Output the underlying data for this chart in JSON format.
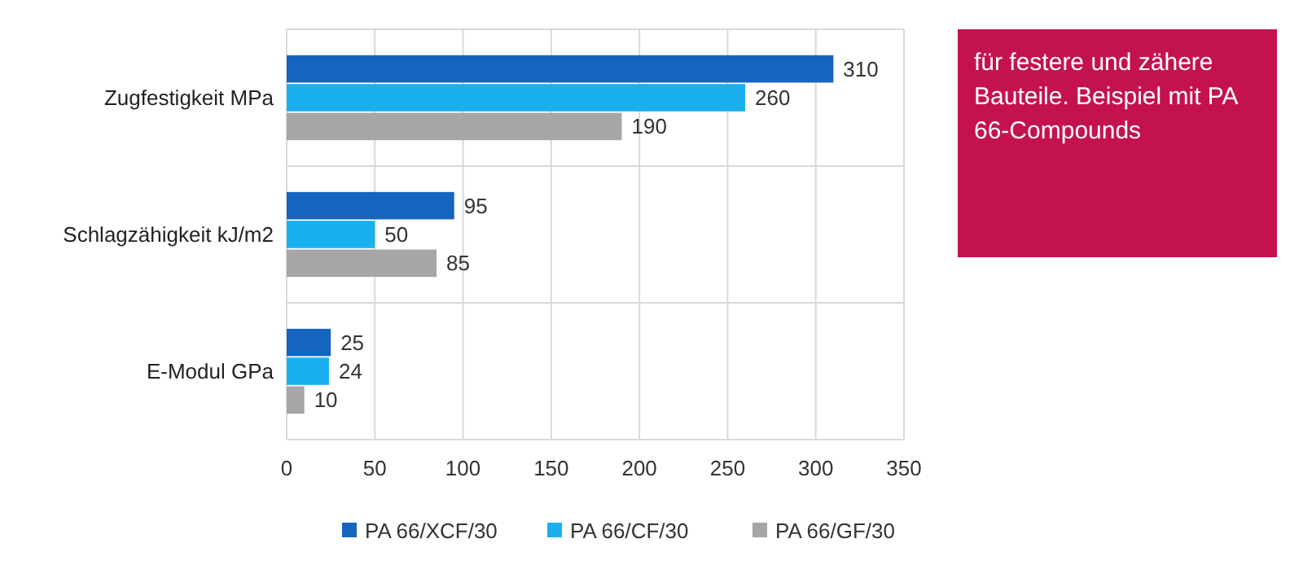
{
  "chart_data": {
    "type": "bar",
    "orientation": "horizontal",
    "categories": [
      "Zugfestigkeit MPa",
      "Schlagzähigkeit kJ/m2",
      "E-Modul GPa"
    ],
    "series": [
      {
        "name": "PA 66/XCF/30",
        "color": "#1565c0",
        "values": [
          310,
          95,
          25
        ]
      },
      {
        "name": "PA 66/CF/30",
        "color": "#1ab0f0",
        "values": [
          260,
          50,
          24
        ]
      },
      {
        "name": "PA 66/GF/30",
        "color": "#a6a6a6",
        "values": [
          190,
          85,
          10
        ]
      }
    ],
    "xlim": [
      0,
      350
    ],
    "xticks": [
      0,
      50,
      100,
      150,
      200,
      250,
      300,
      350
    ],
    "grid": true,
    "legend": "bottom",
    "data_labels": true,
    "annotations": [
      "für festere und zähere Bauteile. Beispiel mit PA 66-Compounds"
    ]
  }
}
